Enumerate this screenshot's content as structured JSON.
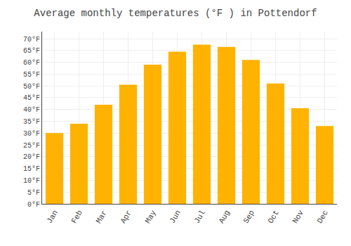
{
  "chart_data": {
    "type": "bar",
    "title": "Average monthly temperatures (°F ) in Pottendorf",
    "categories": [
      "Jan",
      "Feb",
      "Mar",
      "Apr",
      "May",
      "Jun",
      "Jul",
      "Aug",
      "Sep",
      "Oct",
      "Nov",
      "Dec"
    ],
    "values": [
      30,
      34,
      42,
      50.5,
      59,
      64.5,
      67.5,
      66.5,
      61,
      51,
      40.5,
      33
    ],
    "color": "#FFB300",
    "ylim": [
      0,
      73
    ],
    "yticks": [
      {
        "value": 0,
        "label": "0°F"
      },
      {
        "value": 5,
        "label": "5°F"
      },
      {
        "value": 10,
        "label": "10°F"
      },
      {
        "value": 15,
        "label": "15°F"
      },
      {
        "value": 20,
        "label": "20°F"
      },
      {
        "value": 25,
        "label": "25°F"
      },
      {
        "value": 30,
        "label": "30°F"
      },
      {
        "value": 35,
        "label": "35°F"
      },
      {
        "value": 40,
        "label": "40°F"
      },
      {
        "value": 45,
        "label": "45°F"
      },
      {
        "value": 50,
        "label": "50°F"
      },
      {
        "value": 55,
        "label": "55°F"
      },
      {
        "value": 60,
        "label": "60°F"
      },
      {
        "value": 65,
        "label": "65°F"
      },
      {
        "value": 70,
        "label": "70°F"
      }
    ],
    "grid": true
  }
}
